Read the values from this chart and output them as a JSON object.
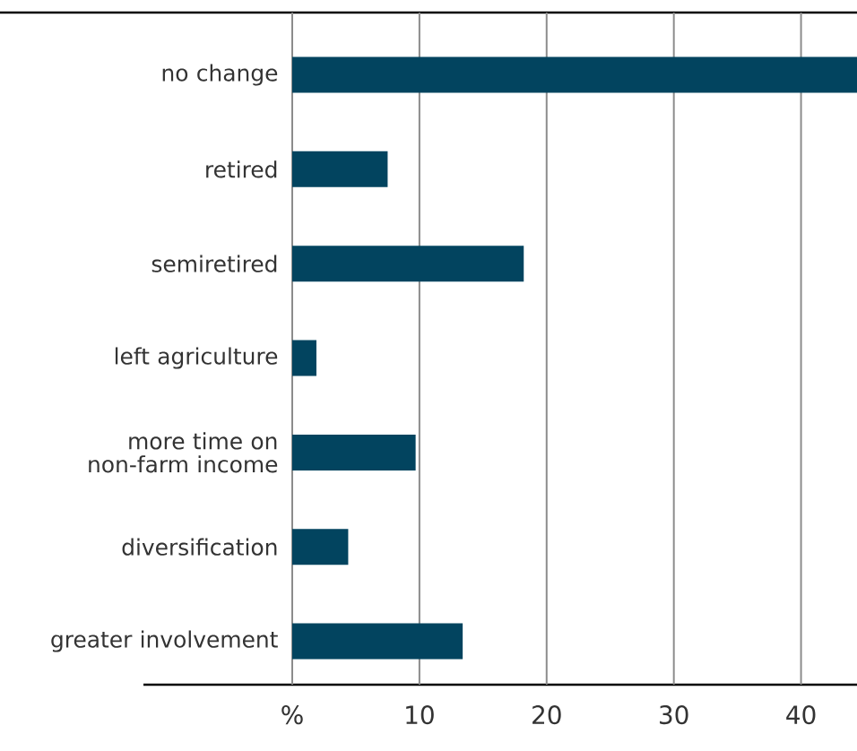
{
  "chart_data": {
    "type": "bar",
    "orientation": "horizontal",
    "categories": [
      "no change",
      "retired",
      "semiretired",
      "left agriculture",
      "more time on non-farm income",
      "diversification",
      "greater involvement"
    ],
    "values": [
      44.4,
      7.5,
      18.2,
      1.9,
      9.7,
      4.4,
      13.4
    ],
    "color": "#02445f",
    "xlim": [
      0,
      44.4
    ],
    "xticks": [
      {
        "value": 0,
        "label": "%"
      },
      10,
      20,
      30,
      40
    ],
    "grid": "x"
  }
}
